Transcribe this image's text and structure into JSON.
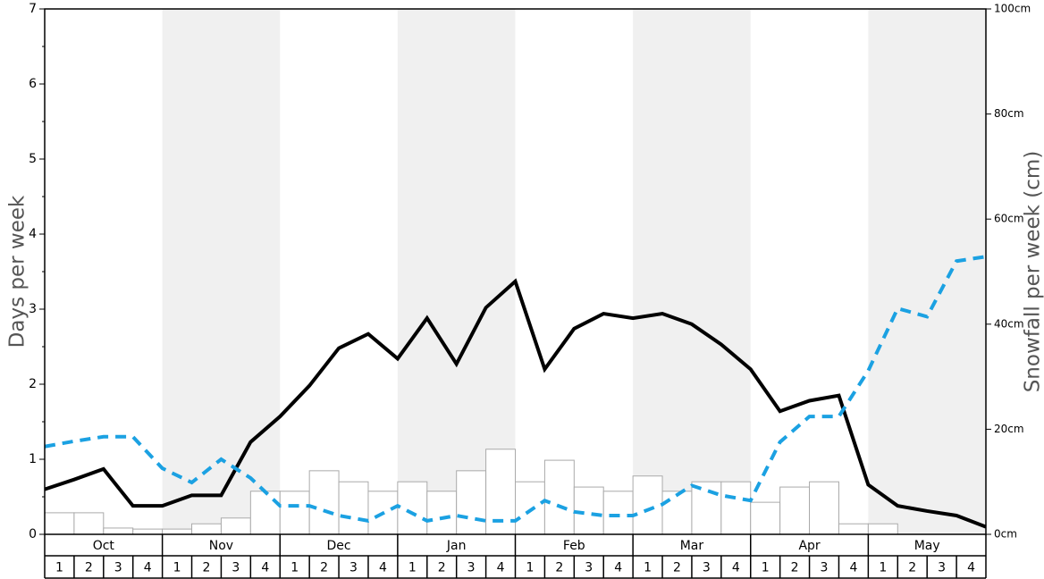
{
  "chart_data": {
    "type": "bar-line",
    "ylabel": "Days per week",
    "y2label": "Snowfall per week (cm)",
    "months": [
      "Oct",
      "Nov",
      "Dec",
      "Jan",
      "Feb",
      "Mar",
      "Apr",
      "May"
    ],
    "weeks": [
      "1",
      "2",
      "3",
      "4"
    ],
    "ylim": [
      0,
      7
    ],
    "yticks": [
      0,
      1,
      2,
      3,
      4,
      5,
      6,
      7
    ],
    "y2lim": [
      0,
      100
    ],
    "y2ticks": [
      {
        "value": 0,
        "label": "0cm"
      },
      {
        "value": 20,
        "label": "20cm"
      },
      {
        "value": 40,
        "label": "40cm"
      },
      {
        "value": 60,
        "label": "60cm"
      },
      {
        "value": 80,
        "label": "80cm"
      },
      {
        "value": 100,
        "label": "100cm"
      }
    ],
    "bars": {
      "axis": "y2",
      "color": "#ffffff",
      "values": [
        4.1,
        4.1,
        1.2,
        1.0,
        1.0,
        2.0,
        3.1,
        8.2,
        8.2,
        12.1,
        10.0,
        8.2,
        10.0,
        8.2,
        12.1,
        16.2,
        10.0,
        14.1,
        9.0,
        8.2,
        11.1,
        8.2,
        10.0,
        10.0,
        6.1,
        9.0,
        10.0,
        2.0,
        2.0,
        0,
        0,
        0
      ]
    },
    "series": [
      {
        "color": "#000000",
        "dashed": false,
        "values": [
          0.6,
          0.73,
          0.87,
          0.38,
          0.38,
          0.52,
          0.52,
          1.23,
          1.57,
          1.98,
          2.48,
          2.67,
          2.34,
          2.88,
          2.27,
          3.02,
          3.37,
          2.2,
          2.74,
          2.94,
          2.88,
          2.94,
          2.8,
          2.53,
          2.2,
          1.64,
          1.78,
          1.85,
          0.66,
          0.38,
          0.31,
          0.25,
          0.1
        ]
      },
      {
        "color": "#1ba1e2",
        "dashed": true,
        "values": [
          1.17,
          1.24,
          1.3,
          1.3,
          0.88,
          0.69,
          1.0,
          0.75,
          0.38,
          0.38,
          0.25,
          0.18,
          0.38,
          0.18,
          0.25,
          0.18,
          0.18,
          0.45,
          0.3,
          0.25,
          0.25,
          0.4,
          0.65,
          0.52,
          0.45,
          1.23,
          1.57,
          1.57,
          2.18,
          3.01,
          2.9,
          3.64,
          3.7
        ]
      }
    ]
  }
}
